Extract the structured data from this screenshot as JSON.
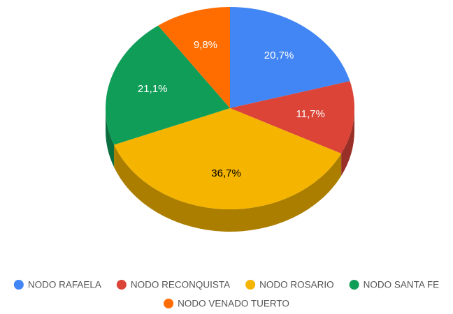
{
  "chart_data": {
    "type": "pie",
    "categories": [
      "NODO RAFAELA",
      "NODO RECONQUISTA",
      "NODO ROSARIO",
      "NODO SANTA FE",
      "NODO VENADO TUERTO"
    ],
    "values": [
      20.7,
      11.7,
      36.7,
      21.1,
      9.8
    ],
    "value_labels": [
      "20,7%",
      "11,7%",
      "36,7%",
      "21,1%",
      "9,8%"
    ],
    "colors": [
      "#4285f4",
      "#db4437",
      "#f4b400",
      "#0f9d58",
      "#ff6d01"
    ],
    "three_d": true,
    "legend": "bottom"
  }
}
